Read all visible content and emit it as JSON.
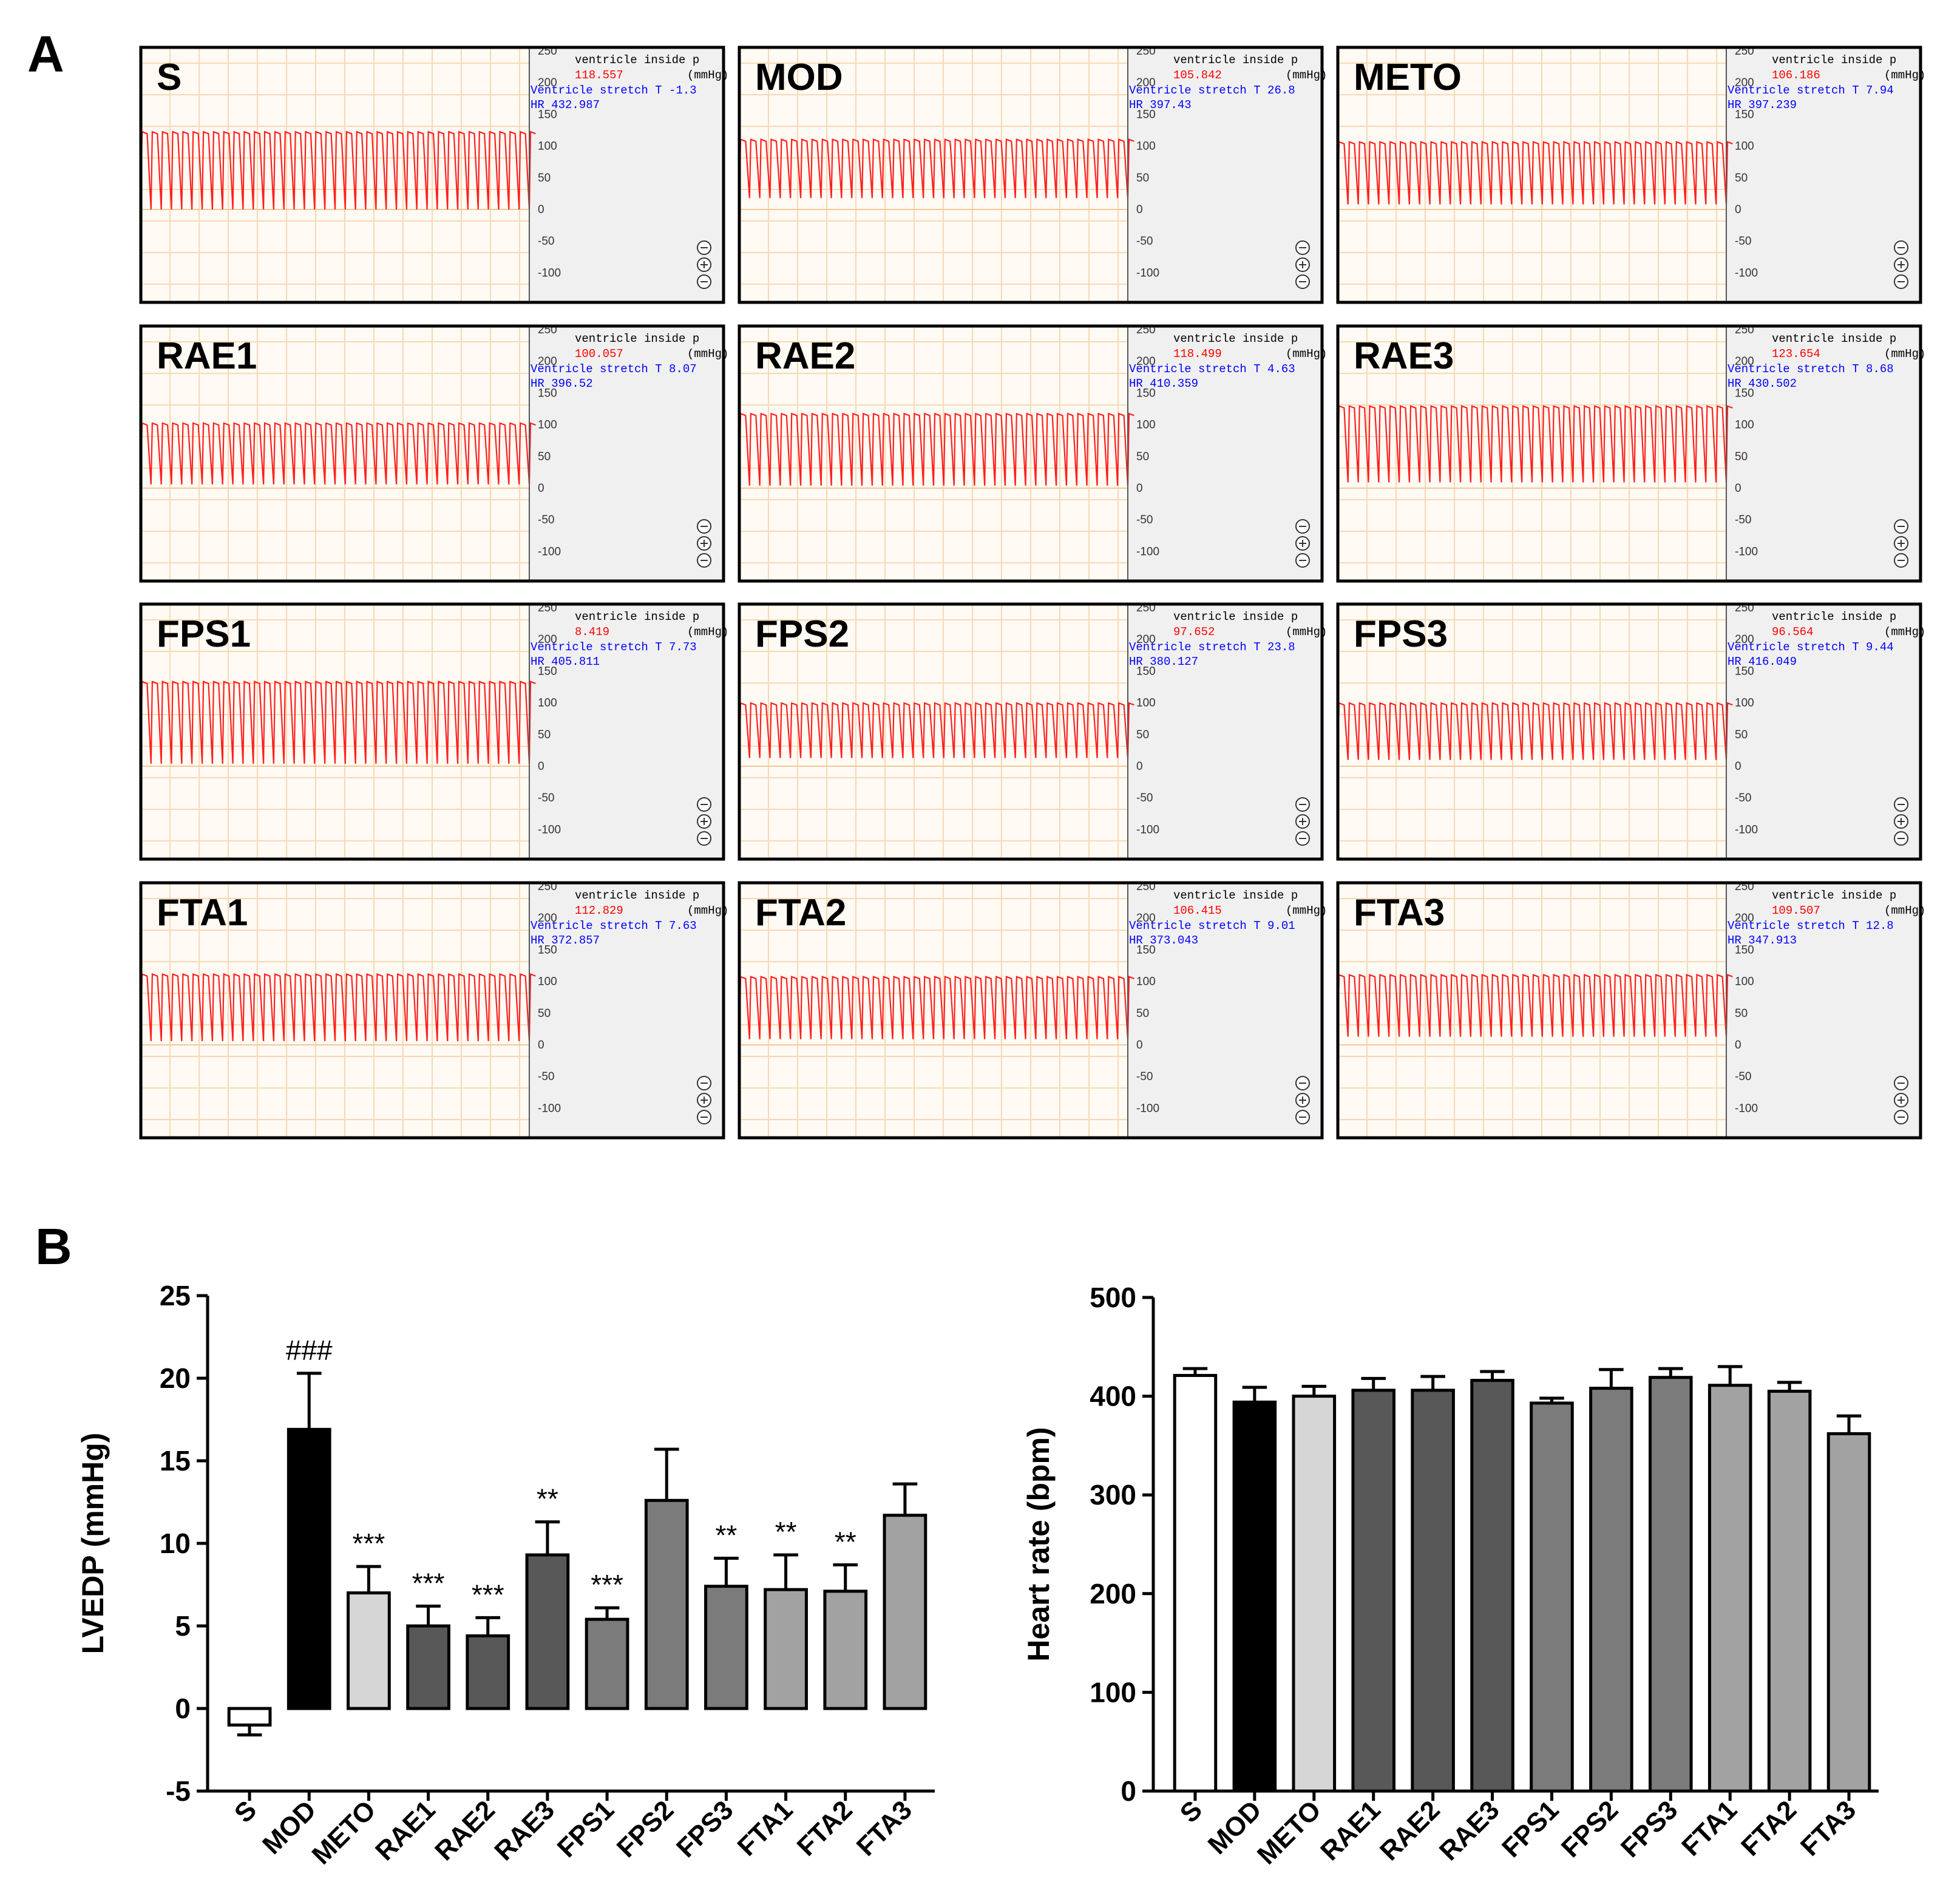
{
  "panel_labels": {
    "a": "A",
    "b": "B"
  },
  "trace_panel": {
    "readout_label": "ventricle inside p",
    "unit_label": "(mmHg)",
    "stretch_label": "Ventricle stretch T",
    "hr_label": "HR",
    "y_ticks": [
      "250",
      "200",
      "150",
      "100",
      "50",
      "0",
      "-50",
      "-100"
    ],
    "colors": {
      "trace": "#ff2020",
      "readout": "#ff0000",
      "stretch": "#0000ff",
      "grid": "#f7d9b5"
    }
  },
  "panels": [
    {
      "name": "S",
      "pressure": "118.557",
      "stretch": "-1.3",
      "hr": "432.987",
      "trace_min": 0,
      "trace_max": 123
    },
    {
      "name": "MOD",
      "pressure": "105.842",
      "stretch": "26.8",
      "hr": "397.43",
      "trace_min": 18,
      "trace_max": 111
    },
    {
      "name": "METO",
      "pressure": "106.186",
      "stretch": "7.94",
      "hr": "397.239",
      "trace_min": 8,
      "trace_max": 107
    },
    {
      "name": "RAE1",
      "pressure": "100.057",
      "stretch": "8.07",
      "hr": "396.52",
      "trace_min": 6,
      "trace_max": 103
    },
    {
      "name": "RAE2",
      "pressure": "118.499",
      "stretch": "4.63",
      "hr": "410.359",
      "trace_min": 4,
      "trace_max": 118
    },
    {
      "name": "RAE3",
      "pressure": "123.654",
      "stretch": "8.68",
      "hr": "430.502",
      "trace_min": 9,
      "trace_max": 130
    },
    {
      "name": "FPS1",
      "pressure": "8.419",
      "stretch": "7.73",
      "hr": "405.811",
      "trace_min": 4,
      "trace_max": 134
    },
    {
      "name": "FPS2",
      "pressure": "97.652",
      "stretch": "23.8",
      "hr": "380.127",
      "trace_min": 13,
      "trace_max": 100
    },
    {
      "name": "FPS3",
      "pressure": "96.564",
      "stretch": "9.44",
      "hr": "416.049",
      "trace_min": 10,
      "trace_max": 100
    },
    {
      "name": "FTA1",
      "pressure": "112.829",
      "stretch": "7.63",
      "hr": "372.857",
      "trace_min": 6,
      "trace_max": 112
    },
    {
      "name": "FTA2",
      "pressure": "106.415",
      "stretch": "9.01",
      "hr": "373.043",
      "trace_min": 9,
      "trace_max": 108
    },
    {
      "name": "FTA3",
      "pressure": "109.507",
      "stretch": "12.8",
      "hr": "347.913",
      "trace_min": 13,
      "trace_max": 111
    }
  ],
  "chart_data": [
    {
      "type": "bar",
      "title": "",
      "xlabel": "",
      "ylabel": "LVEDP (mmHg)",
      "ylim": [
        -5,
        25
      ],
      "yticks": [
        -5,
        0,
        5,
        10,
        15,
        20,
        25
      ],
      "categories": [
        "S",
        "MOD",
        "METO",
        "RAE1",
        "RAE2",
        "RAE3",
        "FPS1",
        "FPS2",
        "FPS3",
        "FTA1",
        "FTA2",
        "FTA3"
      ],
      "values": [
        -1.0,
        16.9,
        7.0,
        5.0,
        4.4,
        9.3,
        5.4,
        12.6,
        7.4,
        7.2,
        7.1,
        11.7
      ],
      "errors": [
        0.6,
        3.4,
        1.6,
        1.2,
        1.1,
        2.0,
        0.7,
        3.1,
        1.7,
        2.1,
        1.6,
        1.9
      ],
      "annotations": [
        "",
        "###",
        "***",
        "***",
        "***",
        "**",
        "***",
        "",
        "**",
        "**",
        "**",
        ""
      ],
      "colors": [
        "#ffffff",
        "#000000",
        "#d6d6d6",
        "#585858",
        "#585858",
        "#585858",
        "#7b7b7b",
        "#7b7b7b",
        "#7b7b7b",
        "#a2a2a2",
        "#a2a2a2",
        "#a2a2a2"
      ]
    },
    {
      "type": "bar",
      "title": "",
      "xlabel": "",
      "ylabel": "Heart rate (bpm)",
      "ylim": [
        0,
        500
      ],
      "yticks": [
        0,
        100,
        200,
        300,
        400,
        500
      ],
      "categories": [
        "S",
        "MOD",
        "METO",
        "RAE1",
        "RAE2",
        "RAE3",
        "FPS1",
        "FPS2",
        "FPS3",
        "FTA1",
        "FTA2",
        "FTA3"
      ],
      "values": [
        421,
        394,
        400,
        406,
        406,
        416,
        393,
        408,
        419,
        411,
        405,
        362
      ],
      "errors": [
        7,
        15,
        10,
        12,
        14,
        9,
        5,
        19,
        9,
        19,
        9,
        18
      ],
      "annotations": [
        "",
        "",
        "",
        "",
        "",
        "",
        "",
        "",
        "",
        "",
        "",
        ""
      ],
      "colors": [
        "#ffffff",
        "#000000",
        "#d6d6d6",
        "#585858",
        "#585858",
        "#585858",
        "#7b7b7b",
        "#7b7b7b",
        "#7b7b7b",
        "#a2a2a2",
        "#a2a2a2",
        "#a2a2a2"
      ]
    }
  ]
}
